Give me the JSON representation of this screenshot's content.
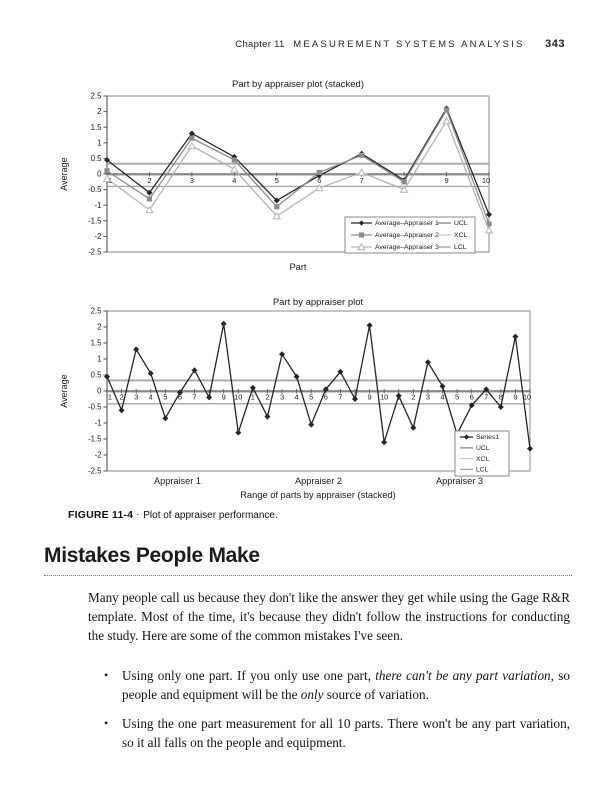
{
  "header": {
    "chapter": "Chapter 11",
    "title": "MEASUREMENT SYSTEMS ANALYSIS",
    "page_number": "343"
  },
  "figure": {
    "label": "FIGURE 11-4",
    "separator": "·",
    "caption": "Plot of appraiser performance."
  },
  "section": {
    "heading": "Mistakes People Make",
    "paragraph": "Many people call us because they don't like the answer they get while using the Gage R&R template. Most of the time, it's because they didn't follow the instructions for conducting the study. Here are some of the common mistakes I've seen.",
    "bullet_glyph": "•",
    "bullets": [
      {
        "segments": [
          {
            "text": "Using only one part. If you only use one part, ",
            "italic": false
          },
          {
            "text": "there can't be any part variation",
            "italic": true
          },
          {
            "text": ", so people and equipment will be the ",
            "italic": false
          },
          {
            "text": "only",
            "italic": true
          },
          {
            "text": " source of variation.",
            "italic": false
          }
        ]
      },
      {
        "segments": [
          {
            "text": "Using the one part measurement for all 10 parts. There won't be any part variation, so it all falls on the people and equipment.",
            "italic": false
          }
        ]
      }
    ]
  },
  "chart_data": [
    {
      "type": "line",
      "title": "Part by appraiser plot (stacked)",
      "xlabel": "Part",
      "ylabel": "Average",
      "ylim": [
        -2.5,
        2.5
      ],
      "y_tick_step": 0.5,
      "grid": false,
      "legend_position": "inside-bottom-right",
      "categories": [
        1,
        2,
        3,
        4,
        5,
        6,
        7,
        8,
        9,
        10
      ],
      "series": [
        {
          "name": "Average–Appraiser 1",
          "marker": "diamond",
          "color": "#262626",
          "values": [
            0.45,
            -0.6,
            1.3,
            0.55,
            -0.85,
            -0.05,
            0.65,
            -0.2,
            2.1,
            -1.3
          ]
        },
        {
          "name": "Average–Appraiser 2",
          "marker": "square",
          "color": "#8c8c8c",
          "values": [
            0.1,
            -0.8,
            1.15,
            0.45,
            -1.05,
            0.05,
            0.6,
            -0.25,
            2.05,
            -1.6
          ]
        },
        {
          "name": "Average–Appraiser 3",
          "marker": "triangle",
          "color": "#b4b4b4",
          "values": [
            -0.15,
            -1.15,
            0.9,
            0.15,
            -1.35,
            -0.45,
            0.05,
            -0.5,
            1.7,
            -1.8
          ]
        }
      ],
      "reference_lines": [
        {
          "name": "UCL",
          "value": 0.33,
          "color": "#a8a8a8"
        },
        {
          "name": "XCL",
          "value": -0.04,
          "color": "#bdbdbd"
        },
        {
          "name": "LCL",
          "value": -0.4,
          "color": "#a8a8a8"
        }
      ]
    },
    {
      "type": "line",
      "title": "Part by appraiser plot",
      "xlabel": "Range of parts by appraiser (stacked)",
      "ylabel": "Average",
      "ylim": [
        -2.5,
        2.5
      ],
      "y_tick_step": 0.5,
      "grid": false,
      "legend_position": "inside-right",
      "categories": [
        1,
        2,
        3,
        4,
        5,
        6,
        7,
        8,
        9,
        10,
        1,
        2,
        3,
        4,
        5,
        6,
        7,
        8,
        9,
        10,
        1,
        2,
        3,
        4,
        5,
        6,
        7,
        8,
        9,
        10
      ],
      "group_labels": [
        "Appraiser 1",
        "Appraiser 2",
        "Appraiser 3"
      ],
      "series": [
        {
          "name": "Series1",
          "marker": "diamond",
          "color": "#262626",
          "values": [
            0.45,
            -0.6,
            1.3,
            0.55,
            -0.85,
            -0.05,
            0.65,
            -0.2,
            2.1,
            -1.3,
            0.1,
            -0.8,
            1.15,
            0.45,
            -1.05,
            0.05,
            0.6,
            -0.25,
            2.05,
            -1.6,
            -0.15,
            -1.15,
            0.9,
            0.15,
            -1.35,
            -0.45,
            0.05,
            -0.5,
            1.7,
            -1.8
          ]
        }
      ],
      "reference_lines": [
        {
          "name": "UCL",
          "value": 0.33,
          "color": "#a8a8a8"
        },
        {
          "name": "XCL",
          "value": -0.04,
          "color": "#bdbdbd"
        },
        {
          "name": "LCL",
          "value": -0.4,
          "color": "#a8a8a8"
        }
      ]
    }
  ]
}
